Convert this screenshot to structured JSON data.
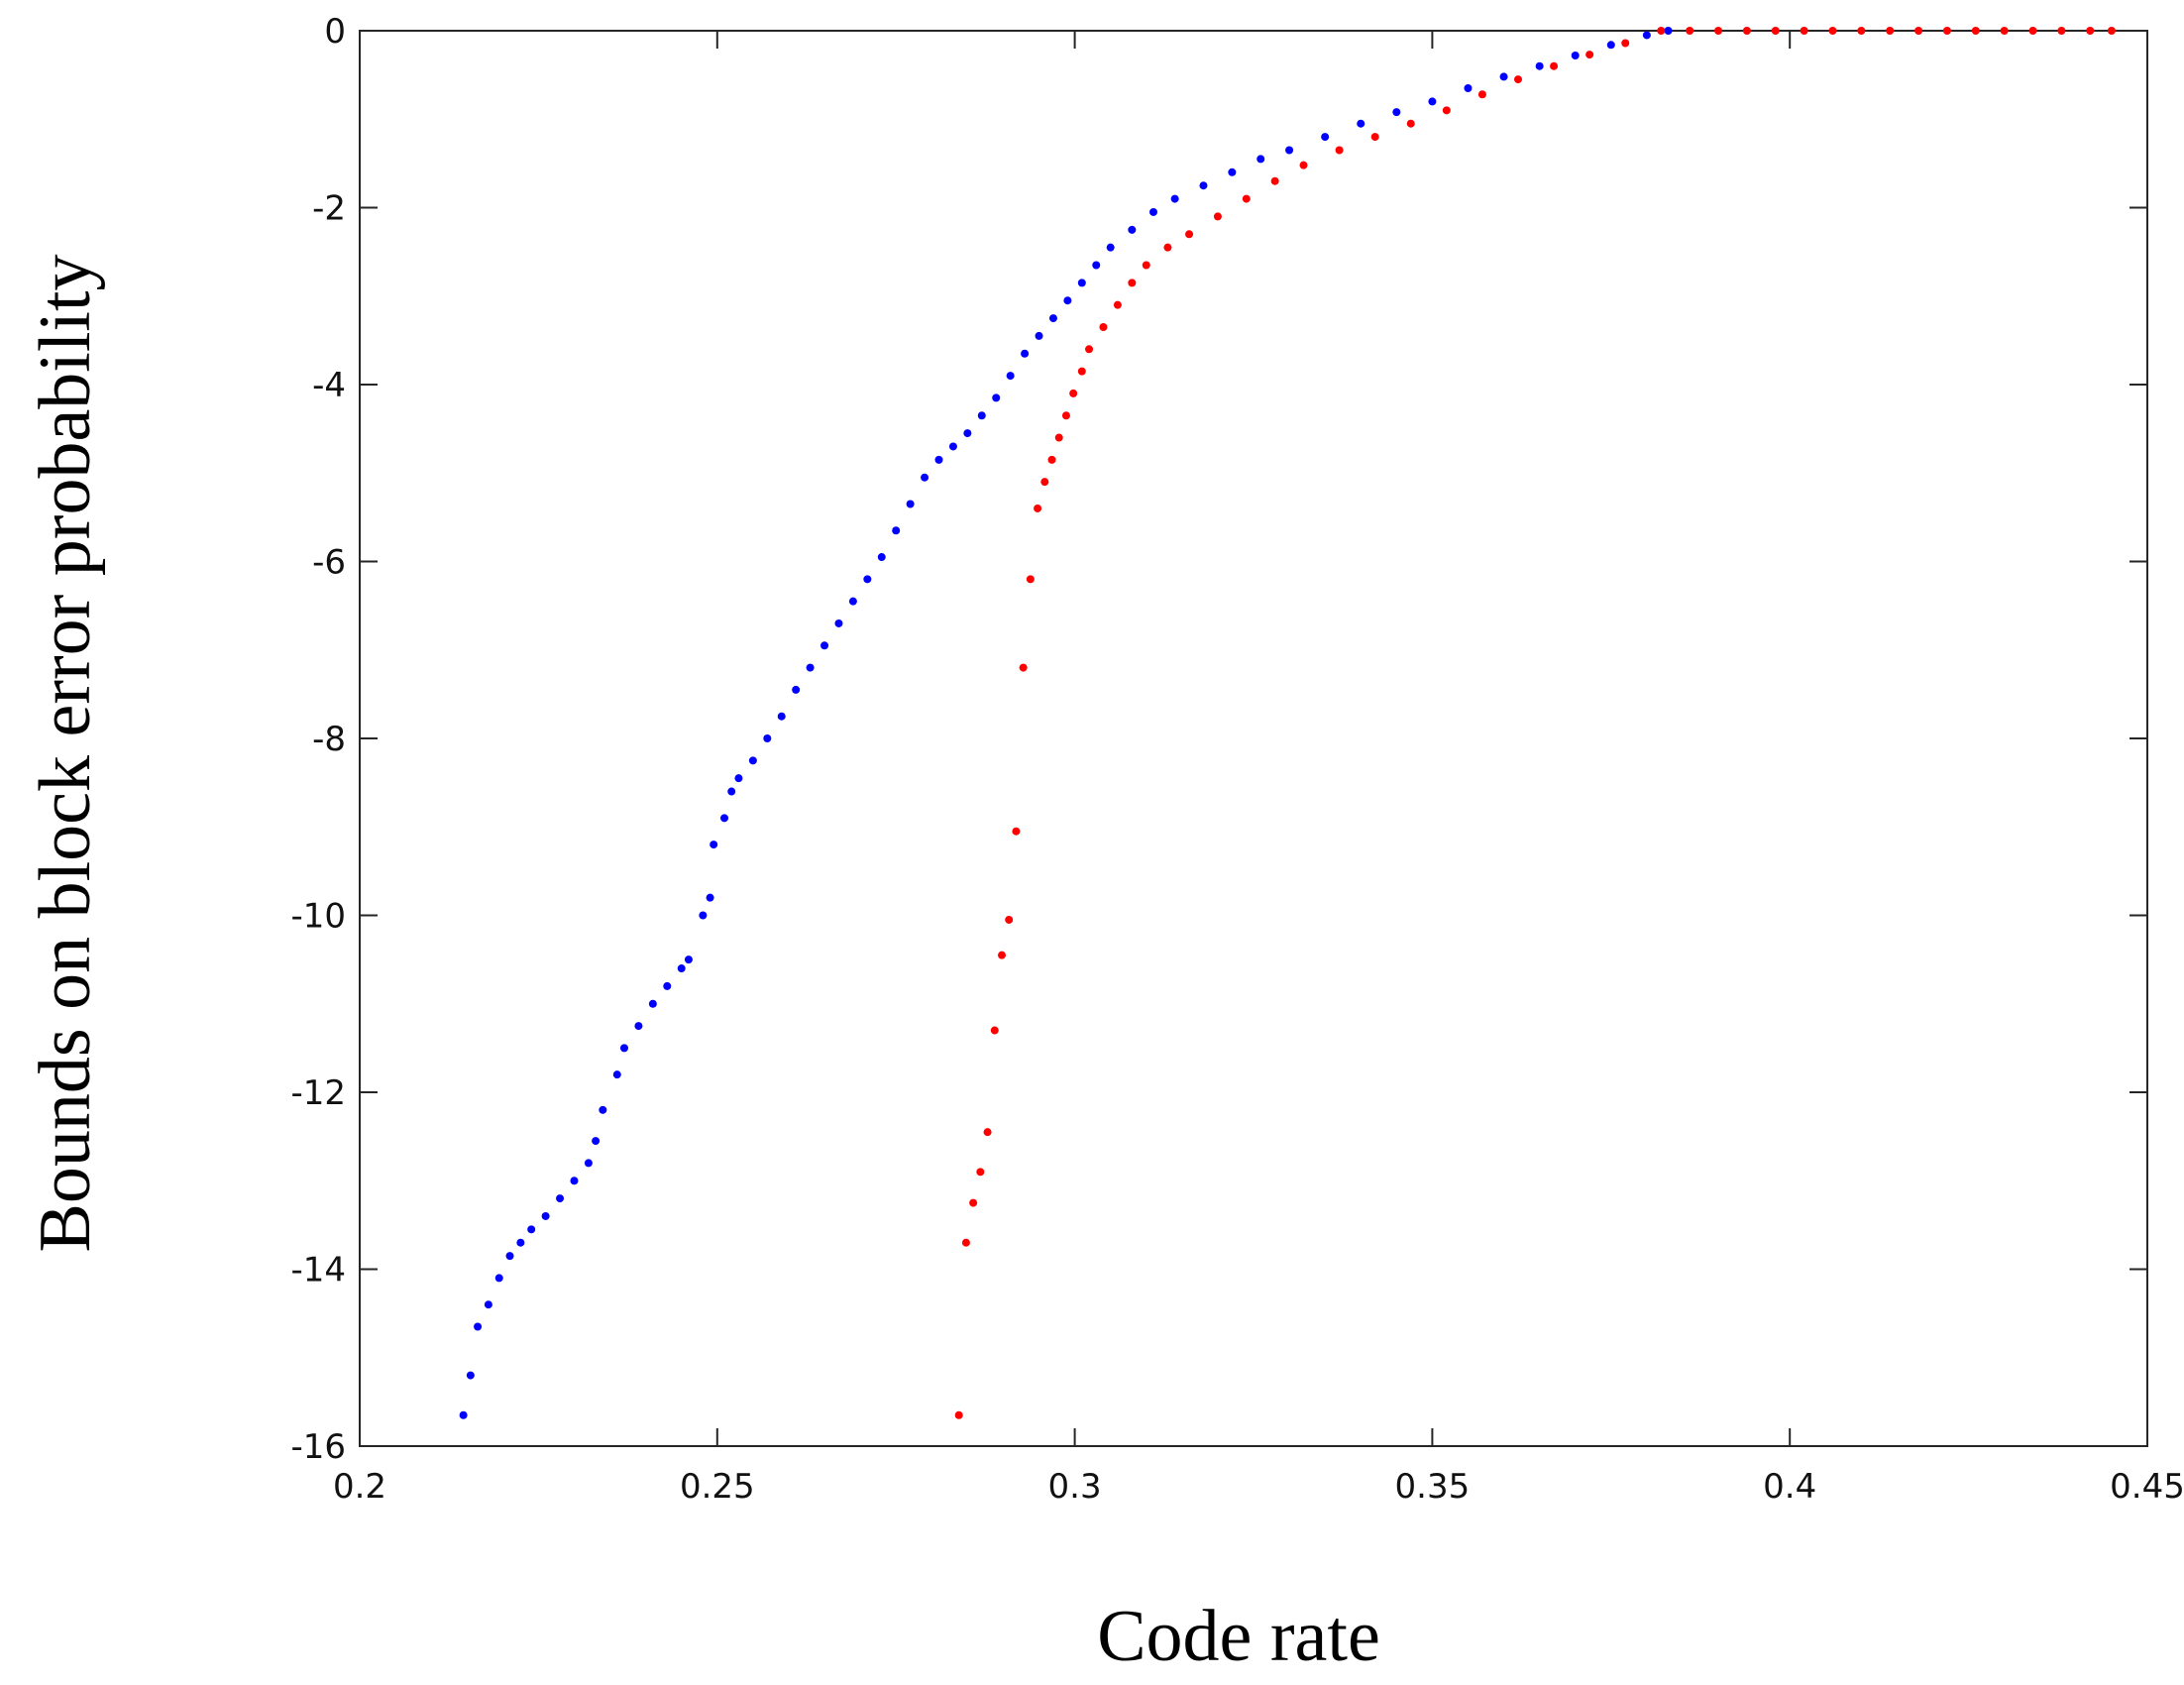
{
  "chart_data": {
    "type": "scatter",
    "xlabel": "Code rate",
    "ylabel": "Bounds on block error probability",
    "xlim": [
      0.2,
      0.45
    ],
    "xticks": [
      0.2,
      0.25,
      0.3,
      0.35,
      0.4,
      0.45
    ],
    "ylim": [
      -16,
      0
    ],
    "yticks": [
      -16,
      -14,
      -12,
      -10,
      -8,
      -6,
      -4,
      -2,
      0
    ],
    "series": [
      {
        "color": "#0000ff",
        "x": [
          0.2145,
          0.2155,
          0.2165,
          0.218,
          0.2195,
          0.221,
          0.2225,
          0.224,
          0.226,
          0.228,
          0.23,
          0.232,
          0.233,
          0.234,
          0.236,
          0.237,
          0.239,
          0.241,
          0.243,
          0.245,
          0.246,
          0.248,
          0.249,
          0.2495,
          0.251,
          0.252,
          0.253,
          0.255,
          0.257,
          0.259,
          0.261,
          0.263,
          0.265,
          0.267,
          0.269,
          0.271,
          0.273,
          0.275,
          0.277,
          0.279,
          0.281,
          0.283,
          0.285,
          0.287,
          0.289,
          0.291,
          0.293,
          0.295,
          0.297,
          0.299,
          0.301,
          0.303,
          0.305,
          0.308,
          0.311,
          0.314,
          0.318,
          0.322,
          0.326,
          0.33,
          0.335,
          0.34,
          0.345,
          0.35,
          0.355,
          0.36,
          0.365,
          0.37,
          0.375,
          0.38,
          0.383
        ],
        "values": [
          -15.65,
          -15.2,
          -14.65,
          -14.4,
          -14.1,
          -13.85,
          -13.7,
          -13.55,
          -13.4,
          -13.2,
          -13.0,
          -12.8,
          -12.55,
          -12.2,
          -11.8,
          -11.5,
          -11.25,
          -11.0,
          -10.8,
          -10.6,
          -10.5,
          -10.0,
          -9.8,
          -9.2,
          -8.9,
          -8.6,
          -8.45,
          -8.25,
          -8.0,
          -7.75,
          -7.45,
          -7.2,
          -6.95,
          -6.7,
          -6.45,
          -6.2,
          -5.95,
          -5.65,
          -5.35,
          -5.05,
          -4.85,
          -4.7,
          -4.55,
          -4.35,
          -4.15,
          -3.9,
          -3.65,
          -3.45,
          -3.25,
          -3.05,
          -2.85,
          -2.65,
          -2.45,
          -2.25,
          -2.05,
          -1.9,
          -1.75,
          -1.6,
          -1.45,
          -1.35,
          -1.2,
          -1.05,
          -0.92,
          -0.8,
          -0.65,
          -0.52,
          -0.4,
          -0.28,
          -0.16,
          -0.05,
          0
        ]
      },
      {
        "color": "#ff0000",
        "x": [
          0.2838,
          0.2848,
          0.2858,
          0.2868,
          0.2878,
          0.2888,
          0.2898,
          0.2908,
          0.2918,
          0.2928,
          0.2938,
          0.2948,
          0.2958,
          0.2968,
          0.2978,
          0.2988,
          0.2998,
          0.301,
          0.302,
          0.304,
          0.306,
          0.308,
          0.31,
          0.313,
          0.316,
          0.32,
          0.324,
          0.328,
          0.332,
          0.337,
          0.342,
          0.347,
          0.352,
          0.357,
          0.362,
          0.367,
          0.372,
          0.377,
          0.382,
          0.386,
          0.39,
          0.394,
          0.398,
          0.402,
          0.406,
          0.41,
          0.414,
          0.418,
          0.422,
          0.426,
          0.43,
          0.434,
          0.438,
          0.442,
          0.445
        ],
        "values": [
          -15.65,
          -13.7,
          -13.25,
          -12.9,
          -12.45,
          -11.3,
          -10.45,
          -10.05,
          -9.05,
          -7.2,
          -6.2,
          -5.4,
          -5.1,
          -4.85,
          -4.6,
          -4.35,
          -4.1,
          -3.85,
          -3.6,
          -3.35,
          -3.1,
          -2.85,
          -2.65,
          -2.45,
          -2.3,
          -2.1,
          -1.9,
          -1.7,
          -1.52,
          -1.35,
          -1.2,
          -1.05,
          -0.9,
          -0.72,
          -0.55,
          -0.4,
          -0.27,
          -0.14,
          0,
          0,
          0,
          0,
          0,
          0,
          0,
          0,
          0,
          0,
          0,
          0,
          0,
          0,
          0,
          0,
          0
        ]
      }
    ]
  }
}
